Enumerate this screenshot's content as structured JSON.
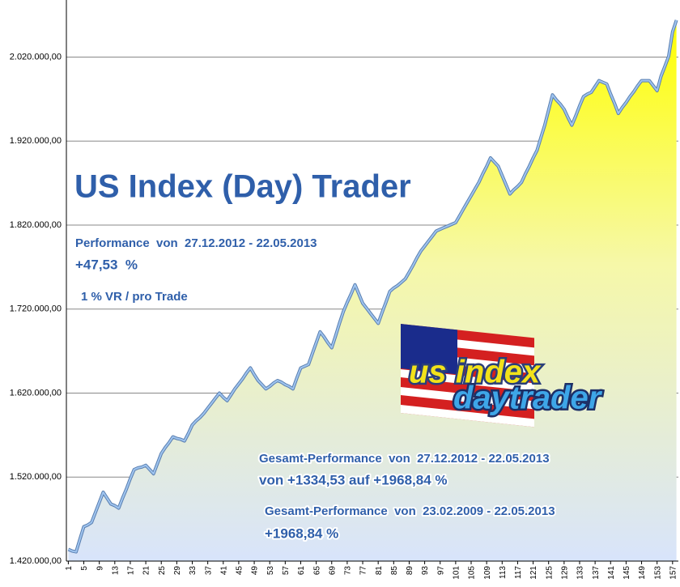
{
  "chart_data": {
    "type": "area",
    "title": "US Index (Day) Trader",
    "annotations": [
      "Performance  von  27.12.2012 - 22.05.2013",
      "+47,53  %",
      "1 % VR / pro Trade",
      "Gesamt-Performance  von  27.12.2012 - 22.05.2013",
      "von +1334,53 auf +1968,84 %",
      "Gesamt-Performance  von  23.02.2009 - 22.05.2013",
      "+1968,84 %"
    ],
    "logo": [
      "us index",
      "daytrader"
    ],
    "categories": [
      "1",
      null,
      null,
      null,
      "5",
      null,
      null,
      null,
      "9",
      null,
      null,
      null,
      "13",
      null,
      null,
      null,
      "17",
      null,
      null,
      null,
      "21",
      null,
      null,
      null,
      "25",
      null,
      null,
      null,
      "29",
      null,
      null,
      null,
      "33",
      null,
      null,
      null,
      "37",
      null,
      null,
      null,
      "41",
      null,
      null,
      null,
      "45",
      null,
      null,
      null,
      "49",
      null,
      null,
      null,
      "53",
      null,
      null,
      null,
      "57",
      null,
      null,
      null,
      "61",
      null,
      null,
      null,
      "65",
      null,
      null,
      null,
      "69",
      null,
      null,
      null,
      "73",
      null,
      null,
      null,
      "77",
      null,
      null,
      null,
      "81",
      null,
      null,
      null,
      "85",
      null,
      null,
      null,
      "89",
      null,
      null,
      null,
      "93",
      null,
      null,
      null,
      "97",
      null,
      null,
      null,
      "101",
      null,
      null,
      null,
      "105",
      null,
      null,
      null,
      "109",
      null,
      null,
      null,
      "113",
      null,
      null,
      null,
      "117",
      null,
      null,
      null,
      "121",
      null,
      null,
      null,
      "125",
      null,
      null,
      null,
      "129",
      null,
      null,
      null,
      "133",
      null,
      null,
      null,
      "137",
      null,
      null,
      null,
      "141",
      null,
      null,
      null,
      "145",
      null,
      null,
      null,
      "149",
      null,
      null,
      null,
      "153",
      null,
      null,
      null,
      "157",
      null
    ],
    "series": [
      {
        "color": "#9fc4ef",
        "values": [
          1434000,
          1432000,
          1431000,
          1446000,
          1461000,
          1463000,
          1466000,
          1478000,
          1490000,
          1502000,
          1495000,
          1488000,
          1486000,
          1483000,
          1495000,
          1506000,
          1518000,
          1529000,
          1531000,
          1532000,
          1534000,
          1529000,
          1524000,
          1536000,
          1548000,
          1555000,
          1561000,
          1568000,
          1566000,
          1565000,
          1563000,
          1572000,
          1582000,
          1587000,
          1591000,
          1596000,
          1602000,
          1608000,
          1614000,
          1620000,
          1615000,
          1611000,
          1618000,
          1625000,
          1631000,
          1637000,
          1644000,
          1650000,
          1642000,
          1635000,
          1630000,
          1625000,
          1628000,
          1632000,
          1635000,
          1633000,
          1630000,
          1628000,
          1625000,
          1638000,
          1650000,
          1652000,
          1654000,
          1667000,
          1680000,
          1693000,
          1687000,
          1680000,
          1674000,
          1688000,
          1703000,
          1717000,
          1728000,
          1738000,
          1749000,
          1738000,
          1727000,
          1721000,
          1715000,
          1709000,
          1703000,
          1716000,
          1728000,
          1741000,
          1745000,
          1748000,
          1752000,
          1756000,
          1764000,
          1772000,
          1781000,
          1789000,
          1795000,
          1801000,
          1807000,
          1813000,
          1815000,
          1817000,
          1819000,
          1821000,
          1823000,
          1831000,
          1839000,
          1847000,
          1855000,
          1863000,
          1871000,
          1881000,
          1890000,
          1900000,
          1895000,
          1890000,
          1879000,
          1868000,
          1857000,
          1862000,
          1866000,
          1871000,
          1881000,
          1890000,
          1900000,
          1909000,
          1924000,
          1939000,
          1957000,
          1975000,
          1969000,
          1964000,
          1958000,
          1948000,
          1939000,
          1950000,
          1962000,
          1973000,
          1976000,
          1978000,
          1985000,
          1992000,
          1990000,
          1988000,
          1976000,
          1965000,
          1953000,
          1960000,
          1966000,
          1973000,
          1979000,
          1986000,
          1992000,
          1992000,
          1992000,
          1986000,
          1980000,
          1997000,
          2009000,
          2021000,
          2050000,
          2064000
        ]
      }
    ],
    "ylim": [
      1420000,
      2088000
    ],
    "yticks": [
      {
        "value": 1420000,
        "label": "1.420.000,00"
      },
      {
        "value": 1520000,
        "label": "1.520.000,00"
      },
      {
        "value": 1620000,
        "label": "1.620.000,00"
      },
      {
        "value": 1720000,
        "label": "1.720.000,00"
      },
      {
        "value": 1820000,
        "label": "1.820.000,00"
      },
      {
        "value": 1920000,
        "label": "1.920.000,00"
      },
      {
        "value": 2020000,
        "label": "2.020.000,00"
      }
    ],
    "grid": true
  }
}
